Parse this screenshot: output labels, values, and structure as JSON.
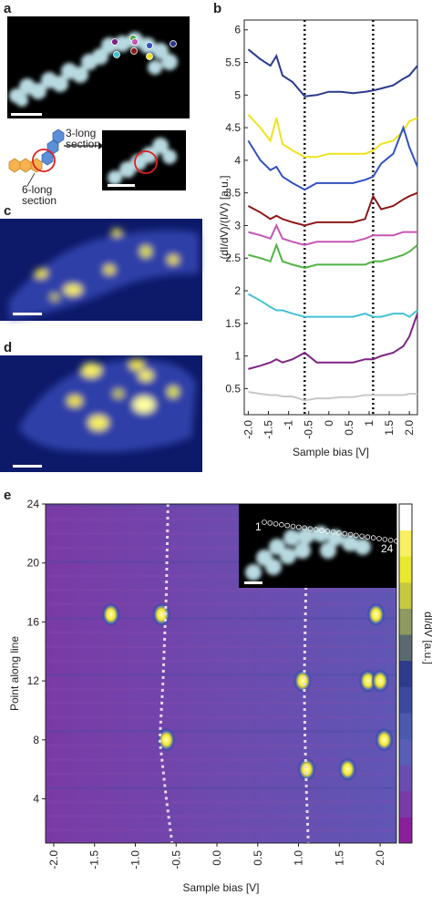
{
  "panels": {
    "a": "a",
    "b": "b",
    "c": "c",
    "d": "d",
    "e": "e"
  },
  "diagram": {
    "label_3": "3-long\nsection",
    "label_6": "6-long\nsection"
  },
  "inset": {
    "start": "1",
    "end": "24"
  },
  "colorbar_label": "dI/dV [a.u.]",
  "chart_data": [
    {
      "type": "line",
      "xlabel": "Sample bias [V]",
      "ylabel": "(dI/dV)/(I/V) [a.u.]",
      "xlim": [
        -2.1,
        2.2
      ],
      "ylim": [
        0.1,
        6.15
      ],
      "xticks": [
        {
          "value": -2,
          "label": "-2.0"
        },
        -1.5,
        -1,
        -0.5,
        0,
        0.5,
        1,
        1.5,
        {
          "value": 2,
          "label": "2.0"
        }
      ],
      "yticks": [
        0.5,
        1,
        1.5,
        2,
        2.5,
        3,
        3.5,
        4,
        4.5,
        5,
        5.5,
        6
      ],
      "vlines": [
        -0.6,
        1.1
      ],
      "x": [
        -2.0,
        -1.7,
        -1.45,
        -1.3,
        -1.15,
        -0.9,
        -0.6,
        -0.3,
        0,
        0.3,
        0.6,
        0.9,
        1.1,
        1.3,
        1.6,
        1.85,
        2.0,
        2.2
      ],
      "series": [
        {
          "color": "#2b3a8c",
          "values": [
            5.7,
            5.55,
            5.45,
            5.6,
            5.3,
            5.2,
            4.98,
            5.0,
            5.05,
            5.05,
            5.03,
            5.05,
            5.07,
            5.1,
            5.15,
            5.25,
            5.3,
            5.45
          ]
        },
        {
          "color": "#eee41c",
          "values": [
            4.7,
            4.5,
            4.3,
            4.65,
            4.25,
            4.15,
            4.05,
            4.05,
            4.1,
            4.1,
            4.1,
            4.1,
            4.15,
            4.25,
            4.3,
            4.45,
            4.6,
            4.65
          ]
        },
        {
          "color": "#3352bd",
          "values": [
            4.3,
            4.0,
            3.85,
            3.9,
            3.75,
            3.65,
            3.55,
            3.65,
            3.65,
            3.65,
            3.65,
            3.7,
            3.75,
            3.95,
            4.1,
            4.5,
            4.2,
            3.9
          ]
        },
        {
          "color": "#8b1a1a",
          "values": [
            3.3,
            3.2,
            3.1,
            3.15,
            3.1,
            3.05,
            3.0,
            3.05,
            3.05,
            3.05,
            3.05,
            3.1,
            3.45,
            3.25,
            3.3,
            3.4,
            3.45,
            3.5
          ]
        },
        {
          "color": "#c456b4",
          "values": [
            2.9,
            2.85,
            2.8,
            3.0,
            2.8,
            2.75,
            2.7,
            2.75,
            2.75,
            2.75,
            2.75,
            2.8,
            2.85,
            2.85,
            2.85,
            2.9,
            2.9,
            2.9
          ]
        },
        {
          "color": "#52b244",
          "values": [
            2.55,
            2.5,
            2.45,
            2.7,
            2.45,
            2.4,
            2.35,
            2.4,
            2.4,
            2.4,
            2.4,
            2.4,
            2.45,
            2.45,
            2.5,
            2.55,
            2.6,
            2.7
          ]
        },
        {
          "color": "#44c2d2",
          "values": [
            1.95,
            1.85,
            1.75,
            1.7,
            1.7,
            1.65,
            1.6,
            1.6,
            1.6,
            1.6,
            1.6,
            1.65,
            1.6,
            1.6,
            1.65,
            1.65,
            1.6,
            1.7
          ]
        },
        {
          "color": "#7e2486",
          "values": [
            0.8,
            0.85,
            0.9,
            0.95,
            0.9,
            0.95,
            1.05,
            0.9,
            0.9,
            0.9,
            0.9,
            0.95,
            0.95,
            1.0,
            1.05,
            1.15,
            1.3,
            1.65
          ]
        },
        {
          "color": "#c8c8c8",
          "values": [
            0.45,
            0.42,
            0.4,
            0.4,
            0.38,
            0.38,
            0.32,
            0.35,
            0.35,
            0.37,
            0.37,
            0.4,
            0.4,
            0.4,
            0.4,
            0.4,
            0.42,
            0.42
          ]
        }
      ]
    },
    {
      "type": "heatmap",
      "xlabel": "Sample bias [V]",
      "ylabel": "Point along line",
      "xlim": [
        -2.1,
        2.2
      ],
      "ylim": [
        1,
        24
      ],
      "xticks": [
        {
          "value": -2,
          "label": "-2.0"
        },
        -1.5,
        {
          "value": -1,
          "label": "-1.0"
        },
        -0.5,
        {
          "value": 0,
          "label": "0.0"
        },
        0.5,
        {
          "value": 1,
          "label": "1.0"
        },
        1.5,
        {
          "value": 2,
          "label": "2.0"
        }
      ],
      "yticks": [
        4,
        8,
        12,
        16,
        20,
        24
      ],
      "dotted_lines": [
        {
          "x": [
            -0.6,
            -0.62,
            -0.66,
            -0.7,
            -0.62,
            -0.55
          ],
          "y": [
            24,
            18,
            12,
            8,
            4,
            1
          ]
        },
        {
          "x": [
            1.1,
            1.09,
            1.07,
            1.08,
            1.1,
            1.12
          ],
          "y": [
            24,
            18,
            12,
            8,
            4,
            1
          ]
        }
      ],
      "spots": {
        "x": [
          -1.3,
          -0.68,
          -0.62,
          1.05,
          1.85,
          2.05,
          1.1,
          1.95,
          1.6,
          2.0
        ],
        "y": [
          16.5,
          16.5,
          8,
          12,
          12,
          8,
          6,
          16.5,
          6,
          12
        ]
      },
      "colors": [
        "#8a1f9c",
        "#7a3aa8",
        "#6a4db2",
        "#5a5db8",
        "#4a5ab0",
        "#3a4aa0",
        "#2e3a8a",
        "#5a6a70",
        "#8f9a60",
        "#c8c840",
        "#e8e830",
        "#f8f060",
        "#ffffff"
      ]
    }
  ]
}
